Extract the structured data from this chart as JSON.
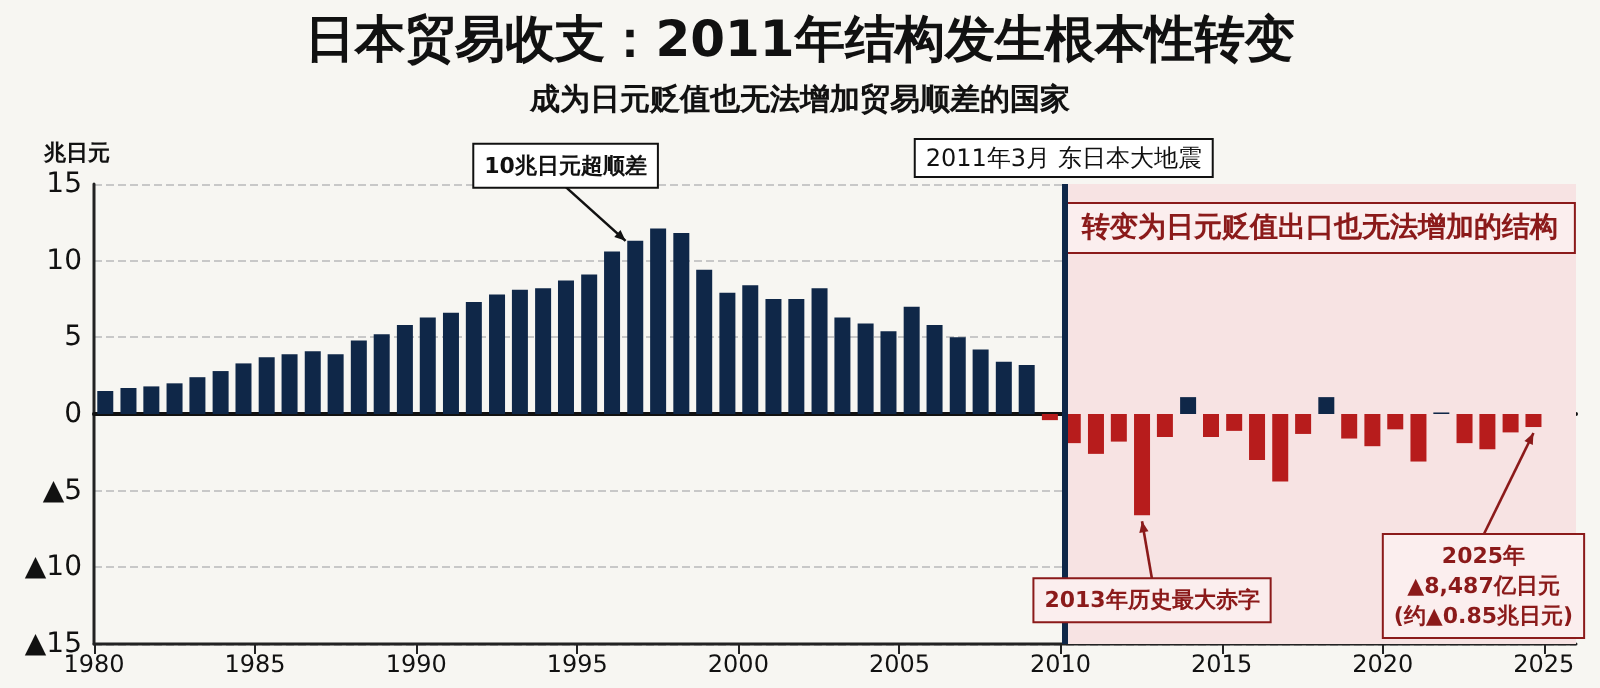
{
  "chart_data": {
    "type": "bar",
    "title": "日本贸易收支：2011年结构发生根本性转变",
    "subtitle": "成为日元贬值也无法增加贸易顺差的国家",
    "ylabel": "兆日元",
    "x": [
      1980.35,
      1981.07,
      1981.78,
      1982.5,
      1983.21,
      1983.93,
      1984.64,
      1985.36,
      1986.07,
      1986.79,
      1987.5,
      1988.22,
      1988.93,
      1989.65,
      1990.36,
      1991.08,
      1991.79,
      1992.51,
      1993.22,
      1993.94,
      1994.65,
      1995.37,
      1996.08,
      1996.8,
      1997.51,
      1998.23,
      1998.94,
      1999.66,
      2000.37,
      2001.09,
      2001.8,
      2002.52,
      2003.23,
      2003.95,
      2004.66,
      2005.38,
      2006.09,
      2006.81,
      2007.52,
      2008.24,
      2008.95,
      2009.67,
      2010.38,
      2011.1,
      2011.81,
      2012.53,
      2013.24,
      2013.96,
      2014.67,
      2015.39,
      2016.1,
      2016.82,
      2017.53,
      2018.25,
      2018.96,
      2019.68,
      2020.39,
      2021.11,
      2021.82,
      2022.54,
      2023.25,
      2023.97,
      2024.68
    ],
    "values": [
      1.5,
      1.7,
      1.8,
      2.0,
      2.4,
      2.8,
      3.3,
      3.7,
      3.9,
      4.1,
      3.9,
      4.8,
      5.2,
      5.8,
      6.3,
      6.6,
      7.3,
      7.8,
      8.1,
      8.2,
      8.7,
      9.1,
      10.6,
      11.3,
      12.1,
      11.8,
      9.4,
      7.9,
      8.4,
      7.5,
      7.5,
      8.2,
      6.3,
      5.9,
      5.4,
      7.0,
      5.8,
      5.0,
      4.2,
      3.4,
      3.2,
      -0.4,
      -1.9,
      -2.6,
      -1.8,
      -6.6,
      -1.5,
      1.1,
      -1.5,
      -1.1,
      -3.0,
      -4.4,
      -1.3,
      1.1,
      -1.6,
      -2.1,
      -1.0,
      -3.1,
      0.1,
      -1.9,
      -2.3,
      -1.2,
      -0.85
    ],
    "colors": [
      "#0f2748",
      "#0f2748",
      "#0f2748",
      "#0f2748",
      "#0f2748",
      "#0f2748",
      "#0f2748",
      "#0f2748",
      "#0f2748",
      "#0f2748",
      "#0f2748",
      "#0f2748",
      "#0f2748",
      "#0f2748",
      "#0f2748",
      "#0f2748",
      "#0f2748",
      "#0f2748",
      "#0f2748",
      "#0f2748",
      "#0f2748",
      "#0f2748",
      "#0f2748",
      "#0f2748",
      "#0f2748",
      "#0f2748",
      "#0f2748",
      "#0f2748",
      "#0f2748",
      "#0f2748",
      "#0f2748",
      "#0f2748",
      "#0f2748",
      "#0f2748",
      "#0f2748",
      "#0f2748",
      "#0f2748",
      "#0f2748",
      "#0f2748",
      "#0f2748",
      "#0f2748",
      "#b71c1c",
      "#b71c1c",
      "#b71c1c",
      "#b71c1c",
      "#b71c1c",
      "#b71c1c",
      "#0f2748",
      "#b71c1c",
      "#b71c1c",
      "#b71c1c",
      "#b71c1c",
      "#b71c1c",
      "#0f2748",
      "#b71c1c",
      "#b71c1c",
      "#b71c1c",
      "#b71c1c",
      "#0f2748",
      "#b71c1c",
      "#b71c1c",
      "#b71c1c",
      "#b71c1c"
    ],
    "xlim": [
      1980,
      2026
    ],
    "xticks": [
      1980,
      1985,
      1990,
      1995,
      2000,
      2005,
      2010,
      2015,
      2020,
      2025
    ],
    "ylim": [
      -15,
      15
    ],
    "yticks": [
      {
        "value": -15,
        "label": "▲15"
      },
      {
        "value": -10,
        "label": "▲10"
      },
      {
        "value": -5,
        "label": "▲5"
      },
      0,
      5,
      10,
      15
    ],
    "ref_lines": [
      {
        "axis": "x",
        "value": 2010.1,
        "label": "2011年3月 东日本大地震",
        "color": "#0f2748"
      }
    ],
    "bands": [
      {
        "axis": "x",
        "from": 2010.1,
        "to": 2026,
        "label": "转变为日元贬值出口也无法增加的结构",
        "color": "#f7e3e3"
      }
    ],
    "annotations": [
      {
        "text": "10兆日元超顺差",
        "x": 1996.5,
        "y": 10.9
      },
      {
        "text": "2013年历史最大赤字",
        "x": 2012.53,
        "y": -6.6
      },
      {
        "text": "2025年\n▲8,487亿日元\n(约▲0.85兆日元)",
        "x": 2024.68,
        "y": -0.85
      }
    ],
    "grid": "y"
  }
}
